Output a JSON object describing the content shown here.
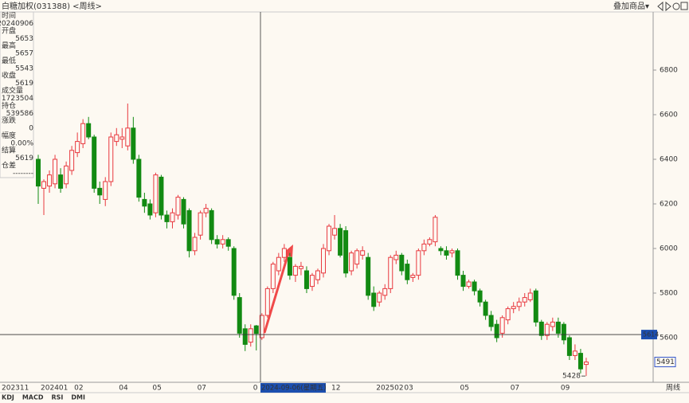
{
  "header": {
    "title": "白糖加权(031388) <周线>",
    "overlay": "叠加商品▾"
  },
  "info_panel": [
    {
      "label": "时间",
      "value": "20240906",
      "color": "#333333"
    },
    {
      "label": "开盘",
      "value": "5653",
      "color": "#e03030"
    },
    {
      "label": "最高",
      "value": "5657",
      "color": "#e03030"
    },
    {
      "label": "最低",
      "value": "5543",
      "color": "#119911"
    },
    {
      "label": "收盘",
      "value": "5619",
      "color": "#333333"
    },
    {
      "label": "成交量",
      "value": "1723504",
      "color": "#e08a00"
    },
    {
      "label": "持仓",
      "value": "539586",
      "color": "#e08a00"
    },
    {
      "label": "涨跌",
      "value": "0",
      "color": "#333333"
    },
    {
      "label": "幅度",
      "value": "0.00%",
      "color": "#333333"
    },
    {
      "label": "结算",
      "value": "5619",
      "color": "#333333"
    },
    {
      "label": "仓差",
      "value": "--------",
      "color": "#333333"
    }
  ],
  "tabs": [
    "KDJ",
    "MACD",
    "RSI",
    "DMI"
  ],
  "chart_data": {
    "type": "candlestick",
    "up_color": "#e8393f",
    "down_color": "#128a12",
    "period_label": "周线",
    "first_label": "202311",
    "categories": [
      null,
      "202401",
      null,
      null,
      null,
      null,
      null,
      "02",
      null,
      null,
      null,
      null,
      null,
      null,
      null,
      "04",
      null,
      null,
      null,
      null,
      null,
      "05",
      null,
      null,
      null,
      null,
      null,
      null,
      null,
      "07",
      null,
      null,
      null,
      null,
      null,
      null,
      null,
      null,
      null,
      "0",
      null,
      null,
      null,
      null,
      null,
      null,
      null,
      null,
      null,
      null,
      null,
      null,
      null,
      "12",
      null,
      null,
      null,
      null,
      null,
      null,
      null,
      "202502",
      null,
      null,
      null,
      null,
      "03",
      null,
      null,
      null,
      null,
      null,
      null,
      null,
      null,
      null,
      "05",
      null,
      null,
      null,
      null,
      null,
      null,
      null,
      null,
      "07",
      null,
      null,
      null,
      null,
      null,
      null,
      null,
      null,
      "09",
      null,
      null,
      null,
      null
    ],
    "open": [
      6400,
      6270,
      6280,
      6290,
      6330,
      6290,
      6350,
      6430,
      6470,
      6560,
      6500,
      6270,
      6220,
      6300,
      6480,
      6490,
      6460,
      6540,
      6400,
      6220,
      6200,
      6160,
      6320,
      6150,
      6120,
      6150,
      6220,
      6170,
      5990,
      6060,
      6160,
      6170,
      6040,
      6020,
      6040,
      6000,
      5780,
      5640,
      5580,
      5653,
      5600,
      5700,
      5820,
      5900,
      5960,
      5960,
      5880,
      5910,
      5900,
      5830,
      5860,
      5890,
      5990,
      6060,
      6090,
      6080,
      5900,
      5930,
      5970,
      5960,
      5800,
      5760,
      5790,
      5820,
      5950,
      5970,
      5930,
      5870,
      5880,
      5990,
      6020,
      6030,
      6000,
      5990,
      5980,
      5990,
      5880,
      5830,
      5850,
      5810,
      5760,
      5700,
      5660,
      5620,
      5680,
      5730,
      5740,
      5760,
      5770,
      5810,
      5670,
      5610,
      5650,
      5670,
      5660,
      5600,
      5520,
      5530,
      5480
    ],
    "high": [
      6420,
      6310,
      6350,
      6420,
      6360,
      6390,
      6460,
      6520,
      6580,
      6590,
      6510,
      6300,
      6320,
      6520,
      6540,
      6540,
      6650,
      6590,
      6420,
      6250,
      6220,
      6340,
      6330,
      6170,
      6180,
      6240,
      6230,
      6180,
      6070,
      6170,
      6200,
      6180,
      6060,
      6060,
      6050,
      6010,
      5800,
      5660,
      5660,
      5657,
      5710,
      5830,
      5940,
      5980,
      6020,
      5980,
      5930,
      5940,
      5920,
      5890,
      5910,
      6020,
      6110,
      6150,
      6110,
      6100,
      5990,
      6000,
      6010,
      5980,
      5830,
      5810,
      5840,
      5970,
      5990,
      5980,
      5950,
      5890,
      6000,
      6040,
      6050,
      6150,
      6010,
      6010,
      6000,
      6000,
      5900,
      5860,
      5860,
      5820,
      5770,
      5720,
      5680,
      5700,
      5740,
      5760,
      5780,
      5800,
      5820,
      5820,
      5680,
      5670,
      5690,
      5690,
      5670,
      5610,
      5570,
      5550,
      5510
    ],
    "low": [
      6200,
      6150,
      6250,
      6270,
      6250,
      6270,
      6330,
      6410,
      6450,
      6490,
      6250,
      6200,
      6190,
      6280,
      6460,
      6450,
      6440,
      6380,
      6210,
      6160,
      6130,
      6140,
      6130,
      6090,
      6090,
      6130,
      6090,
      5960,
      5970,
      6040,
      6140,
      6020,
      6000,
      6000,
      5990,
      5770,
      5600,
      5540,
      5560,
      5543,
      5590,
      5690,
      5800,
      5880,
      5940,
      5860,
      5850,
      5880,
      5800,
      5810,
      5840,
      5870,
      5970,
      6040,
      5960,
      5870,
      5880,
      5910,
      5950,
      5770,
      5720,
      5740,
      5770,
      5800,
      5930,
      5880,
      5840,
      5850,
      5860,
      5970,
      6010,
      6010,
      5970,
      5950,
      5960,
      5860,
      5810,
      5820,
      5790,
      5740,
      5680,
      5630,
      5580,
      5600,
      5660,
      5710,
      5720,
      5740,
      5760,
      5650,
      5590,
      5590,
      5630,
      5600,
      5570,
      5500,
      5500,
      5440,
      5428
    ],
    "close": [
      6280,
      6300,
      6330,
      6400,
      6270,
      6370,
      6440,
      6480,
      6560,
      6500,
      6270,
      6240,
      6300,
      6500,
      6510,
      6500,
      6540,
      6400,
      6230,
      6190,
      6150,
      6330,
      6150,
      6120,
      6160,
      6230,
      6110,
      5990,
      6050,
      6160,
      6180,
      6040,
      6020,
      6040,
      6010,
      5790,
      5620,
      5570,
      5640,
      5619,
      5700,
      5820,
      5930,
      5960,
      6000,
      5880,
      5920,
      5920,
      5820,
      5880,
      5900,
      6000,
      6100,
      6090,
      5970,
      5890,
      5980,
      5990,
      5990,
      5790,
      5740,
      5800,
      5820,
      5960,
      5970,
      5900,
      5860,
      5880,
      5990,
      6020,
      6040,
      6140,
      5990,
      5970,
      5990,
      5880,
      5830,
      5850,
      5810,
      5760,
      5700,
      5650,
      5600,
      5690,
      5730,
      5740,
      5760,
      5780,
      5800,
      5670,
      5610,
      5660,
      5670,
      5620,
      5590,
      5520,
      5540,
      5460,
      5491
    ],
    "ylim": [
      5400,
      7050
    ],
    "yticks": [
      5600,
      5800,
      6000,
      6200,
      6400,
      6600,
      6800
    ],
    "crosshair": {
      "date": "2024-09-06(星期五)",
      "price": 5614
    }
  }
}
